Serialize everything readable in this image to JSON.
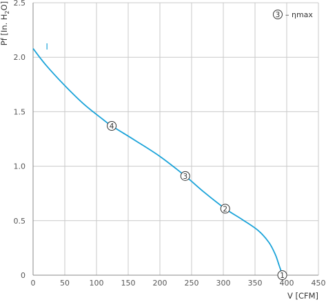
{
  "chart_data": {
    "type": "line",
    "xlabel": "V [CFM]",
    "ylabel_parts": [
      "Pf [In. H",
      "2",
      "O]"
    ],
    "xlim": [
      0,
      450
    ],
    "ylim": [
      0,
      2.5
    ],
    "x_ticks": [
      0,
      50,
      100,
      150,
      200,
      250,
      300,
      350,
      400,
      450
    ],
    "y_ticks": [
      0,
      0.5,
      1.0,
      1.5,
      2.0,
      2.5
    ],
    "y_tick_labels": [
      "0",
      "0.5",
      "1.0",
      "1.5",
      "2.0",
      "2.5"
    ],
    "grid": true,
    "line_color": "#1aa3d9",
    "series": [
      {
        "name": "I",
        "x": [
          0,
          20,
          50,
          80,
          110,
          124,
          160,
          200,
          240,
          270,
          303,
          330,
          355,
          372,
          382,
          388,
          391,
          393
        ],
        "y": [
          2.08,
          1.93,
          1.74,
          1.57,
          1.43,
          1.37,
          1.24,
          1.09,
          0.91,
          0.76,
          0.61,
          0.51,
          0.41,
          0.3,
          0.19,
          0.09,
          0.04,
          0.0
        ]
      }
    ],
    "markers": [
      {
        "label": "1",
        "x": 393,
        "y": 0.0
      },
      {
        "label": "2",
        "x": 303,
        "y": 0.61
      },
      {
        "label": "3",
        "x": 240,
        "y": 0.91
      },
      {
        "label": "4",
        "x": 124,
        "y": 1.37
      }
    ],
    "series_label": {
      "text": "I",
      "x": 20,
      "y": 2.07
    },
    "legend": {
      "marker": "3",
      "text": "– ηmax",
      "position": "top-right"
    }
  }
}
